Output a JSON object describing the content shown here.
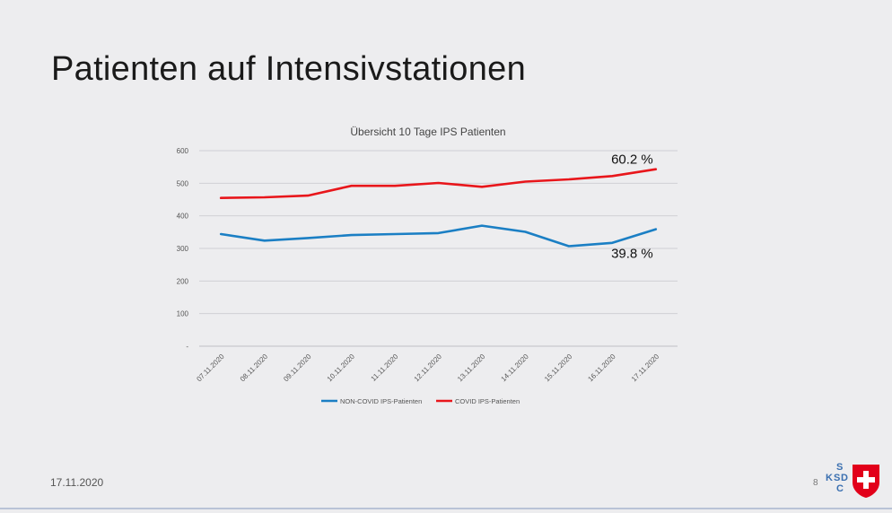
{
  "slide": {
    "title": "Patienten auf Intensivstationen",
    "date": "17.11.2020",
    "page_number": "8"
  },
  "logo": {
    "letters": [
      "S",
      "K",
      "S",
      "D",
      "C"
    ],
    "name": "ksd-logo"
  },
  "colors": {
    "background": "#ededef",
    "covid": "#e8161b",
    "non_covid": "#1b7fc4",
    "grid": "#d0d0d4"
  },
  "chart_data": {
    "type": "line",
    "title": "Übersicht 10 Tage IPS Patienten",
    "xlabel": "",
    "ylabel": "",
    "categories": [
      "07.11.2020",
      "08.11.2020",
      "09.11.2020",
      "10.11.2020",
      "11.11.2020",
      "12.11.2020",
      "13.11.2020",
      "14.11.2020",
      "15.11.2020",
      "16.11.2020",
      "17.11.2020"
    ],
    "y_ticks": [
      "-",
      "100",
      "200",
      "300",
      "400",
      "500",
      "600"
    ],
    "ylim": [
      0,
      600
    ],
    "grid": true,
    "legend_position": "bottom",
    "series": [
      {
        "name": "NON-COVID IPS-Patienten",
        "color": "#1b7fc4",
        "values": [
          344,
          324,
          332,
          341,
          344,
          347,
          370,
          351,
          307,
          317,
          359
        ]
      },
      {
        "name": "COVID IPS-Patienten",
        "color": "#e8161b",
        "values": [
          455,
          457,
          462,
          492,
          492,
          501,
          489,
          505,
          512,
          522,
          543
        ]
      }
    ],
    "annotations": [
      {
        "text": "60.2 %",
        "series": "COVID IPS-Patienten",
        "category": "17.11.2020"
      },
      {
        "text": "39.8 %",
        "series": "NON-COVID IPS-Patienten",
        "category": "17.11.2020"
      }
    ]
  }
}
